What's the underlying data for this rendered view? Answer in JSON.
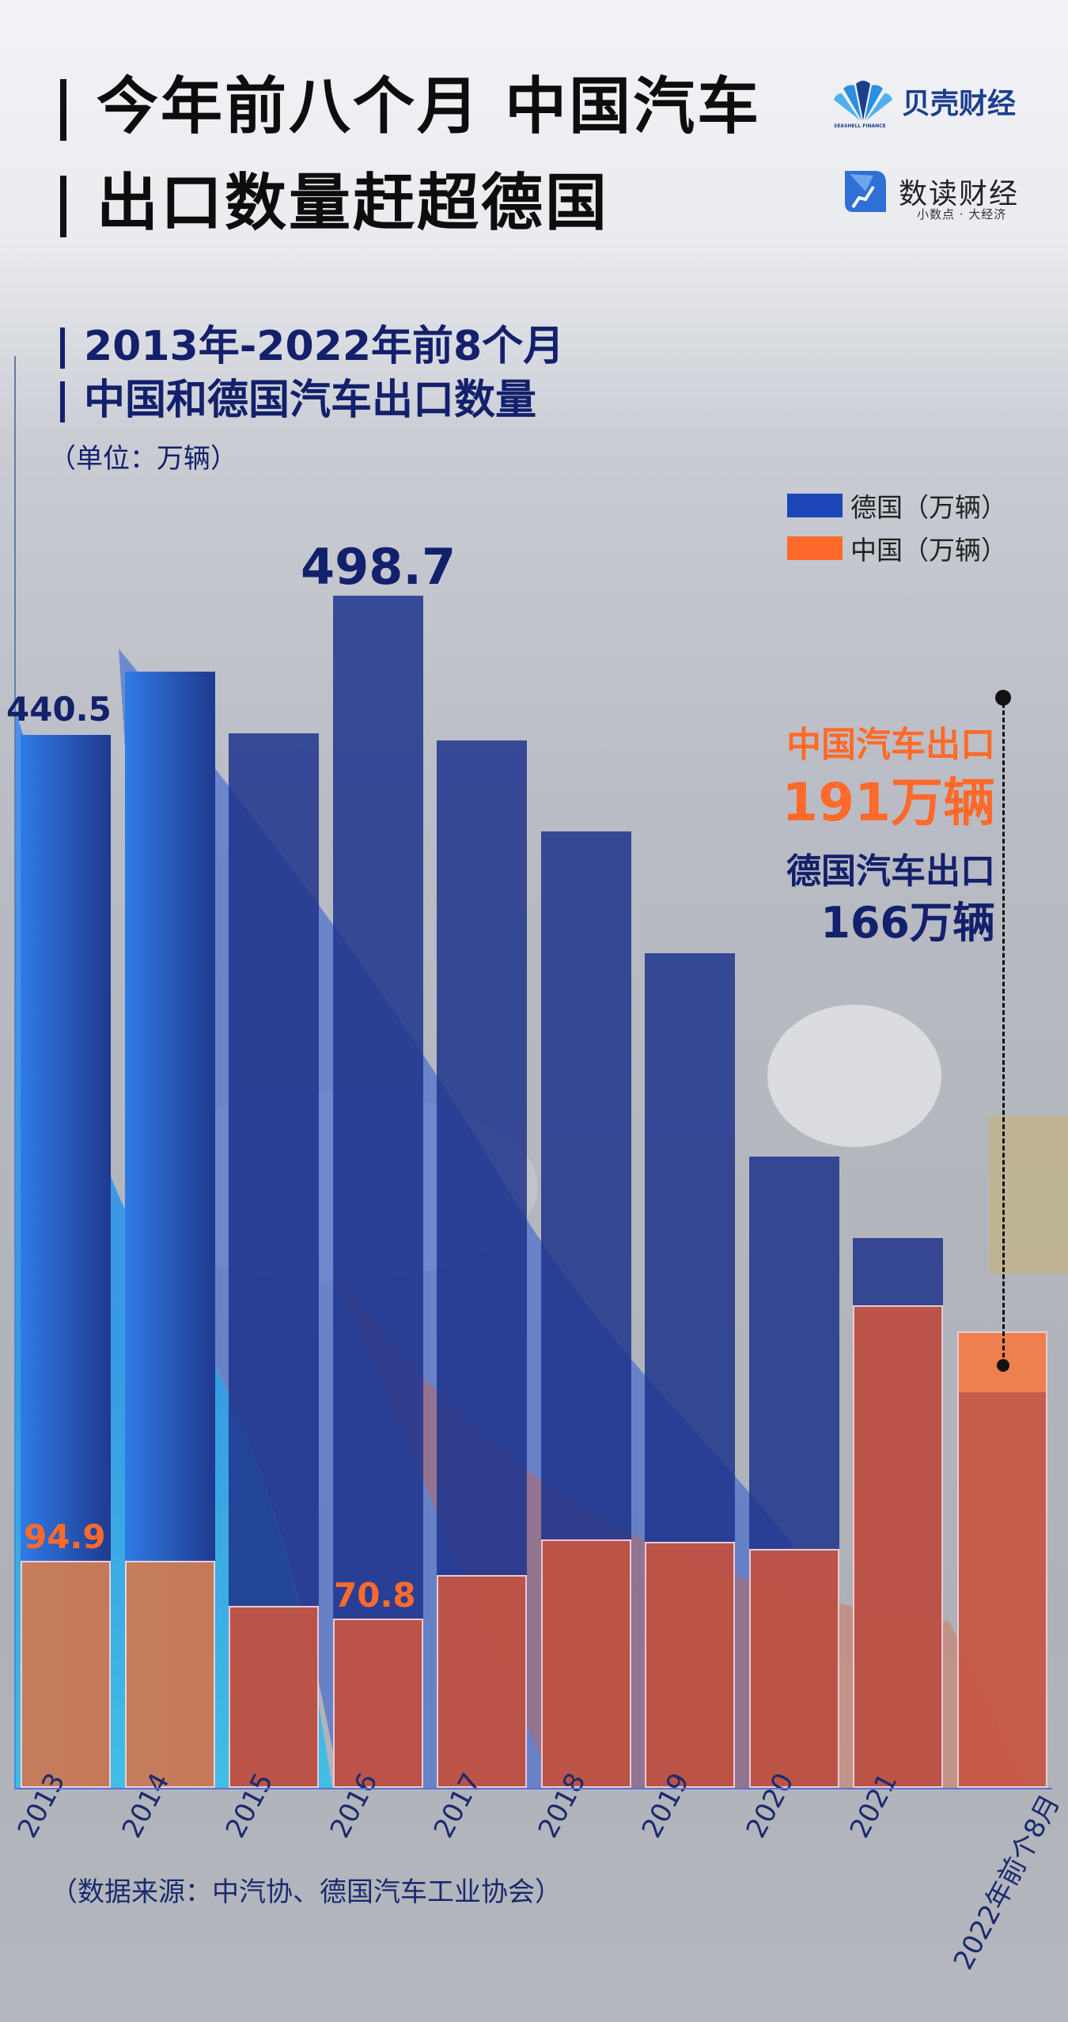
{
  "header": {
    "title_line1": "今年前八个月 中国汽车",
    "title_line2": "出口数量赶超德国",
    "logo1": {
      "name": "贝壳财经",
      "sub": "SEASHELL FINANCE"
    },
    "logo2": {
      "name": "数读财经",
      "sub": "小数点 · 大经济"
    }
  },
  "chart_header": {
    "line1": "2013年-2022年前8个月",
    "line2": "中国和德国汽车出口数量",
    "unit": "（单位：万辆）"
  },
  "legend": [
    {
      "label": "德国（万辆）",
      "color": "#1c46b8"
    },
    {
      "label": "中国（万辆）",
      "color": "#ff6a2a"
    }
  ],
  "annotation": {
    "china_label": "中国汽车出口",
    "china_value": "191万辆",
    "germany_label": "德国汽车出口",
    "germany_value": "166万辆"
  },
  "labels": {
    "de_2013": "440.5",
    "de_2016": "498.7",
    "cn_2013": "94.9",
    "cn_2016": "70.8"
  },
  "source": "（数据来源：中汽协、德国汽车工业协会）",
  "colors": {
    "germany": "#1f3a8f",
    "china": "#c8553f",
    "china_bright": "#ff6a2a",
    "navy_text": "#13206b"
  },
  "chart_data": {
    "type": "bar",
    "title": "2013年-2022年前8个月 中国和德国汽车出口数量",
    "ylabel": "单位：万辆",
    "xlabel": "",
    "categories": [
      "2013",
      "2014",
      "2015",
      "2016",
      "2017",
      "2018",
      "2019",
      "2020",
      "2021",
      "2022年前个8月"
    ],
    "series": [
      {
        "name": "德国（万辆）",
        "values": [
          440.5,
          467,
          441,
          498.7,
          438,
          400,
          349,
          264,
          230,
          166
        ]
      },
      {
        "name": "中国（万辆）",
        "values": [
          94.9,
          95,
          76,
          70.8,
          89,
          104,
          103,
          100,
          202,
          191
        ]
      }
    ],
    "data_labels": {
      "德国 2013": 440.5,
      "德国 2016": 498.7,
      "中国 2013": 94.9,
      "中国 2016": 70.8
    },
    "annotations": [
      "中国汽车出口 191万辆",
      "德国汽车出口 166万辆"
    ],
    "ylim": [
      0,
      520
    ],
    "grid": false,
    "legend_position": "top-right"
  }
}
